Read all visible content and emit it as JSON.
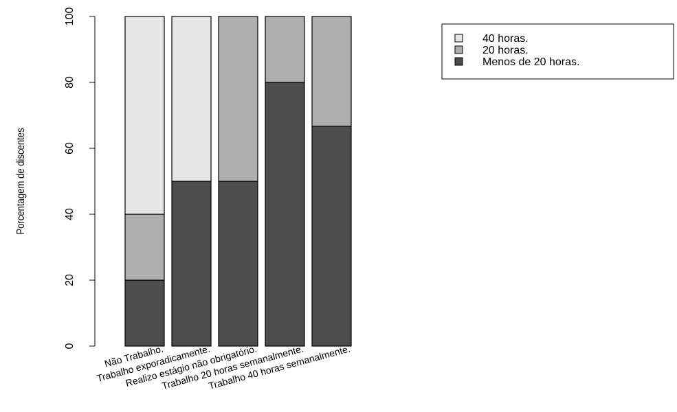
{
  "chart_data": {
    "type": "bar",
    "stacked": true,
    "categories": [
      "Não Trabalho.",
      "Trabalho exporadicamente.",
      "Realizo estágio não obrigatório.",
      "Trabalho 20 horas semanalmente.",
      "Trabalho 40 horas semanalmente."
    ],
    "series": [
      {
        "name": "Menos de 20 horas.",
        "values": [
          20,
          50,
          50,
          80,
          66.7
        ],
        "color": "#4d4d4d"
      },
      {
        "name": "20 horas.",
        "values": [
          20,
          0,
          50,
          20,
          33.3
        ],
        "color": "#aeaeae"
      },
      {
        "name": "40 horas.",
        "values": [
          60,
          50,
          0,
          0,
          0
        ],
        "color": "#e6e6e6"
      }
    ],
    "legend_order": [
      "40 horas.",
      "20 horas.",
      "Menos de 20 horas."
    ],
    "xlabel": "",
    "ylabel": "Porcentagem de discentes",
    "ylim": [
      0,
      100
    ],
    "yticks": [
      0,
      20,
      40,
      60,
      80,
      100
    ],
    "grid": false,
    "legend_position": "top-right"
  }
}
